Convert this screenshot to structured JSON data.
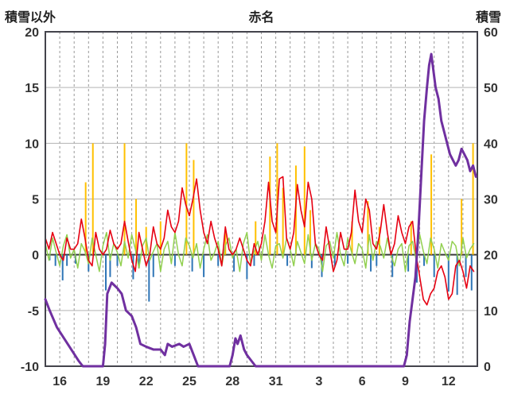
{
  "header": {
    "left_axis_title": "積雪以外",
    "title": "赤名",
    "right_axis_title": "積雪"
  },
  "chart_data": {
    "type": "line",
    "title": "赤名",
    "station": "赤名",
    "left_axis": {
      "label": "積雪以外",
      "min": -10,
      "max": 20,
      "ticks": [
        20,
        15,
        10,
        5,
        0,
        -5,
        -10
      ]
    },
    "right_axis": {
      "label": "積雪",
      "min": 0,
      "max": 60,
      "ticks": [
        60,
        50,
        40,
        30,
        20,
        10,
        0
      ]
    },
    "x_axis": {
      "min_day": 0,
      "max_day": 30,
      "grid_every_day": true,
      "ticks": [
        {
          "day": 1,
          "label": "16"
        },
        {
          "day": 4,
          "label": "19"
        },
        {
          "day": 7,
          "label": "22"
        },
        {
          "day": 10,
          "label": "25"
        },
        {
          "day": 13,
          "label": "28"
        },
        {
          "day": 16,
          "label": "31"
        },
        {
          "day": 19,
          "label": "3"
        },
        {
          "day": 22,
          "label": "6"
        },
        {
          "day": 25,
          "label": "9"
        },
        {
          "day": 28,
          "label": "12"
        }
      ]
    },
    "style": {
      "background": "#ffffff",
      "frame_color": "#44444c",
      "grid_color": "#b3b3b3",
      "grid_dash_color": "#9a9a9a",
      "zero_line_color": "#3a3a3a",
      "label_color": "#333333"
    },
    "series": [
      {
        "name": "orange-spikes",
        "type": "bar",
        "axis": "left",
        "color": "#ffc000",
        "width": 2,
        "points": [
          [
            2.8,
            6.5
          ],
          [
            3.3,
            10
          ],
          [
            5.5,
            10
          ],
          [
            6.3,
            5
          ],
          [
            7.0,
            2.5
          ],
          [
            8.0,
            3
          ],
          [
            9.8,
            10
          ],
          [
            10.3,
            8.5
          ],
          [
            12.5,
            2
          ],
          [
            14.6,
            3
          ],
          [
            15.6,
            8.8
          ],
          [
            16.1,
            10
          ],
          [
            16.5,
            6
          ],
          [
            17.4,
            8
          ],
          [
            18.0,
            9.7
          ],
          [
            18.4,
            4
          ],
          [
            21.3,
            3
          ],
          [
            22.4,
            4.8
          ],
          [
            23.2,
            2.5
          ],
          [
            25.4,
            3
          ],
          [
            26.8,
            9
          ],
          [
            28.9,
            5
          ],
          [
            29.7,
            10
          ]
        ]
      },
      {
        "name": "blue-spikes",
        "type": "bar",
        "axis": "left",
        "color": "#2e75b6",
        "width": 2,
        "points": [
          [
            0.3,
            -0.5
          ],
          [
            0.7,
            -1.0
          ],
          [
            1.2,
            -2.3
          ],
          [
            1.5,
            -1.0
          ],
          [
            2.1,
            -0.8
          ],
          [
            3.0,
            -1.5
          ],
          [
            4.2,
            -3.2
          ],
          [
            4.5,
            -2.0
          ],
          [
            5.0,
            -1.0
          ],
          [
            6.1,
            -2.2
          ],
          [
            6.5,
            -1.2
          ],
          [
            7.2,
            -4.2
          ],
          [
            7.5,
            -2.0
          ],
          [
            9.0,
            -1.0
          ],
          [
            10.2,
            -1.5
          ],
          [
            11.0,
            -2.0
          ],
          [
            12.0,
            -1.0
          ],
          [
            13.1,
            -1.5
          ],
          [
            14.0,
            -2.2
          ],
          [
            14.5,
            -1.0
          ],
          [
            16.8,
            -1.0
          ],
          [
            18.5,
            -1.2
          ],
          [
            19.2,
            -2.0
          ],
          [
            20.1,
            -1.0
          ],
          [
            21.0,
            -0.8
          ],
          [
            22.6,
            -1.5
          ],
          [
            23.0,
            -1.0
          ],
          [
            24.1,
            -2.0
          ],
          [
            25.2,
            -1.5
          ],
          [
            25.8,
            -2.5
          ],
          [
            26.3,
            -1.0
          ],
          [
            27.0,
            -2.0
          ],
          [
            28.0,
            -3.3
          ],
          [
            28.6,
            -3.6
          ],
          [
            29.2,
            -2.0
          ],
          [
            29.6,
            -3.2
          ]
        ]
      },
      {
        "name": "green-line",
        "type": "line",
        "axis": "left",
        "color": "#92d050",
        "width": 1.5,
        "x0": 0,
        "dx": 0.25,
        "values": [
          1.0,
          -0.5,
          1.5,
          0.2,
          -1.0,
          0.8,
          1.8,
          -0.3,
          0.5,
          -1.2,
          1.0,
          0.3,
          -0.8,
          1.5,
          0.0,
          -1.5,
          0.8,
          2.0,
          -0.5,
          1.0,
          0.2,
          -1.0,
          1.2,
          -0.3,
          1.8,
          0.5,
          -1.2,
          0.8,
          1.5,
          -0.5,
          0.3,
          1.0,
          -1.5,
          0.5,
          1.2,
          -0.8,
          2.0,
          0.0,
          -1.0,
          1.5,
          0.8,
          -0.3,
          1.0,
          -1.2,
          0.5,
          1.8,
          -0.5,
          0.2,
          1.2,
          -1.0,
          0.8,
          1.5,
          -0.3,
          0.5,
          -1.5,
          1.0,
          2.0,
          -0.8,
          0.3,
          1.2,
          -0.5,
          1.8,
          0.0,
          -1.2,
          0.8,
          1.0,
          -0.3,
          1.5,
          0.5,
          -1.0,
          1.2,
          0.2,
          -0.8,
          1.8,
          -0.5,
          1.0,
          0.5,
          -1.5,
          0.8,
          1.2,
          -0.3,
          2.0,
          0.0,
          -1.0,
          1.5,
          0.3,
          -0.8,
          1.0,
          0.5,
          -1.2,
          1.8,
          -0.5,
          1.2,
          0.8,
          -0.3,
          1.5,
          0.0,
          -1.0,
          0.5,
          1.0,
          -1.5,
          0.8,
          1.2,
          -0.5,
          1.8,
          0.3,
          -0.8,
          1.5,
          0.5,
          -1.2,
          1.0,
          0.2,
          -0.5,
          1.2,
          0.8,
          -1.0,
          1.5,
          -0.3,
          0.5,
          1.0
        ]
      },
      {
        "name": "red-line",
        "type": "line",
        "axis": "left",
        "color": "#e60012",
        "width": 1.6,
        "x0": 0,
        "dx": 0.25,
        "values": [
          1.5,
          0.5,
          2.0,
          1.0,
          0.0,
          -0.5,
          1.5,
          0.5,
          0.5,
          1.0,
          3.2,
          1.5,
          -0.5,
          -1.0,
          2.0,
          0.5,
          0.0,
          0.5,
          2.2,
          1.0,
          0.5,
          1.0,
          3.0,
          1.2,
          -0.5,
          -1.5,
          2.0,
          0.5,
          -1.0,
          0.0,
          2.5,
          1.0,
          0.5,
          1.5,
          4.0,
          2.5,
          2.0,
          3.0,
          6.0,
          4.5,
          3.5,
          5.0,
          6.8,
          4.0,
          2.0,
          1.0,
          3.0,
          1.5,
          0.5,
          -1.0,
          2.5,
          0.5,
          0.0,
          0.5,
          1.5,
          0.5,
          -0.5,
          -1.0,
          1.0,
          0.0,
          1.0,
          3.0,
          6.5,
          3.0,
          2.0,
          6.8,
          7.0,
          1.5,
          0.5,
          2.0,
          6.3,
          4.0,
          2.5,
          6.5,
          5.0,
          1.0,
          0.0,
          -0.5,
          2.5,
          0.5,
          -1.5,
          -0.5,
          2.0,
          0.5,
          0.5,
          2.0,
          5.8,
          3.0,
          2.0,
          5.0,
          4.0,
          1.0,
          0.5,
          2.0,
          4.5,
          2.0,
          0.0,
          1.0,
          3.5,
          2.0,
          1.0,
          2.5,
          3.0,
          0.0,
          -2.0,
          -4.0,
          -4.5,
          -3.5,
          -3.0,
          -1.5,
          -1.0,
          -2.0,
          -4.0,
          -3.5,
          -1.0,
          -0.5,
          -1.5,
          -3.0,
          -1.0,
          -1.5
        ]
      },
      {
        "name": "snow-depth-purple",
        "type": "line",
        "axis": "right",
        "color": "#7030a0",
        "width": 3,
        "points": [
          [
            0,
            12
          ],
          [
            0.3,
            10
          ],
          [
            0.8,
            7
          ],
          [
            1.3,
            5
          ],
          [
            1.8,
            3
          ],
          [
            2.3,
            1
          ],
          [
            2.6,
            0
          ],
          [
            4.0,
            0
          ],
          [
            4.15,
            4
          ],
          [
            4.3,
            13
          ],
          [
            4.6,
            15
          ],
          [
            5.0,
            14
          ],
          [
            5.3,
            13
          ],
          [
            5.6,
            10
          ],
          [
            6.0,
            9
          ],
          [
            6.3,
            7
          ],
          [
            6.6,
            4
          ],
          [
            7.0,
            3.5
          ],
          [
            7.5,
            3
          ],
          [
            8.0,
            3
          ],
          [
            8.3,
            2
          ],
          [
            8.5,
            4
          ],
          [
            8.8,
            3.5
          ],
          [
            9.3,
            4
          ],
          [
            9.6,
            3.5
          ],
          [
            10.0,
            4
          ],
          [
            10.3,
            2
          ],
          [
            10.6,
            0
          ],
          [
            12.8,
            0
          ],
          [
            13.0,
            2
          ],
          [
            13.2,
            5
          ],
          [
            13.35,
            4
          ],
          [
            13.55,
            5.5
          ],
          [
            13.8,
            3
          ],
          [
            14.0,
            2
          ],
          [
            14.3,
            1
          ],
          [
            14.6,
            0
          ],
          [
            24.9,
            0
          ],
          [
            25.1,
            2
          ],
          [
            25.3,
            8
          ],
          [
            25.5,
            12
          ],
          [
            25.7,
            16
          ],
          [
            25.9,
            24
          ],
          [
            26.1,
            34
          ],
          [
            26.3,
            44
          ],
          [
            26.5,
            50
          ],
          [
            26.65,
            54
          ],
          [
            26.8,
            56
          ],
          [
            26.95,
            53
          ],
          [
            27.1,
            50
          ],
          [
            27.3,
            48
          ],
          [
            27.5,
            44
          ],
          [
            27.7,
            42
          ],
          [
            27.9,
            40
          ],
          [
            28.1,
            38
          ],
          [
            28.3,
            37
          ],
          [
            28.5,
            36
          ],
          [
            28.7,
            37
          ],
          [
            28.9,
            39
          ],
          [
            29.1,
            38
          ],
          [
            29.3,
            37
          ],
          [
            29.5,
            35
          ],
          [
            29.7,
            36
          ],
          [
            29.9,
            34
          ]
        ]
      }
    ]
  }
}
